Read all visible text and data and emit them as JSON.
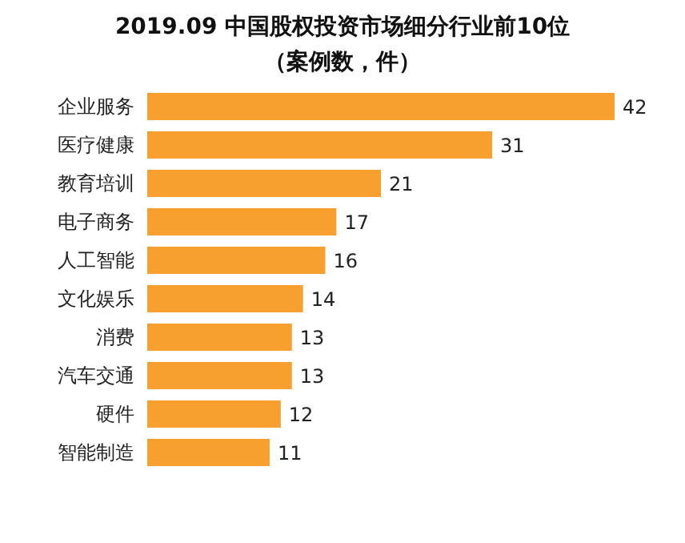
{
  "chart_data": {
    "type": "bar",
    "orientation": "horizontal",
    "title": "2019.09 中国股权投资市场细分行业前10位",
    "subtitle": "（案例数，件）",
    "categories": [
      "企业服务",
      "医疗健康",
      "教育培训",
      "电子商务",
      "人工智能",
      "文化娱乐",
      "消费",
      "汽车交通",
      "硬件",
      "智能制造"
    ],
    "values": [
      42,
      31,
      21,
      17,
      16,
      14,
      13,
      13,
      12,
      11
    ],
    "color": "#f7a02f",
    "data_labels": true,
    "grid": false,
    "legend": false
  }
}
